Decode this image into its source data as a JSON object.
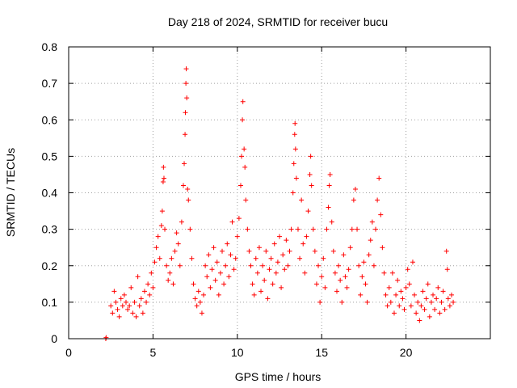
{
  "chart_data": {
    "type": "scatter",
    "title": "Day 218 of 2024, SRMTID for receiver bucu",
    "xlabel": "GPS time / hours",
    "ylabel": "SRMTID / TECUs",
    "xlim": [
      0,
      25
    ],
    "ylim": [
      0,
      0.8
    ],
    "xticks": [
      0,
      5,
      10,
      15,
      20
    ],
    "xtick_labels": [
      "0",
      "5",
      "10",
      "15",
      "20"
    ],
    "yticks": [
      0,
      0.1,
      0.2,
      0.3,
      0.4,
      0.5,
      0.6,
      0.7,
      0.8
    ],
    "ytick_labels": [
      "0",
      "0.1",
      "0.2",
      "0.3",
      "0.4",
      "0.5",
      "0.6",
      "0.7",
      "0.8"
    ],
    "grid": true,
    "marker": "plus",
    "color": "#ff0000",
    "series": [
      {
        "name": "SRMTID",
        "points": [
          [
            2.2,
            0.0
          ],
          [
            2.22,
            0.003
          ],
          [
            2.5,
            0.09
          ],
          [
            2.6,
            0.07
          ],
          [
            2.7,
            0.13
          ],
          [
            2.8,
            0.1
          ],
          [
            2.9,
            0.08
          ],
          [
            3.0,
            0.06
          ],
          [
            3.1,
            0.11
          ],
          [
            3.2,
            0.09
          ],
          [
            3.3,
            0.12
          ],
          [
            3.4,
            0.1
          ],
          [
            3.5,
            0.08
          ],
          [
            3.6,
            0.09
          ],
          [
            3.7,
            0.14
          ],
          [
            3.8,
            0.07
          ],
          [
            3.9,
            0.1
          ],
          [
            4.0,
            0.06
          ],
          [
            4.1,
            0.17
          ],
          [
            4.2,
            0.09
          ],
          [
            4.3,
            0.11
          ],
          [
            4.4,
            0.07
          ],
          [
            4.5,
            0.13
          ],
          [
            4.6,
            0.1
          ],
          [
            4.7,
            0.15
          ],
          [
            4.8,
            0.12
          ],
          [
            4.9,
            0.18
          ],
          [
            5.0,
            0.14
          ],
          [
            5.1,
            0.21
          ],
          [
            5.2,
            0.25
          ],
          [
            5.3,
            0.28
          ],
          [
            5.4,
            0.22
          ],
          [
            5.5,
            0.31
          ],
          [
            5.55,
            0.35
          ],
          [
            5.6,
            0.43
          ],
          [
            5.62,
            0.47
          ],
          [
            5.65,
            0.44
          ],
          [
            5.7,
            0.3
          ],
          [
            5.8,
            0.2
          ],
          [
            5.9,
            0.16
          ],
          [
            6.0,
            0.18
          ],
          [
            6.1,
            0.22
          ],
          [
            6.2,
            0.15
          ],
          [
            6.3,
            0.24
          ],
          [
            6.4,
            0.29
          ],
          [
            6.5,
            0.26
          ],
          [
            6.6,
            0.2
          ],
          [
            6.7,
            0.32
          ],
          [
            6.8,
            0.42
          ],
          [
            6.85,
            0.48
          ],
          [
            6.9,
            0.56
          ],
          [
            6.92,
            0.62
          ],
          [
            6.95,
            0.7
          ],
          [
            6.97,
            0.74
          ],
          [
            7.0,
            0.66
          ],
          [
            7.05,
            0.41
          ],
          [
            7.1,
            0.38
          ],
          [
            7.2,
            0.3
          ],
          [
            7.3,
            0.22
          ],
          [
            7.4,
            0.15
          ],
          [
            7.5,
            0.11
          ],
          [
            7.6,
            0.09
          ],
          [
            7.7,
            0.13
          ],
          [
            7.8,
            0.1
          ],
          [
            7.9,
            0.07
          ],
          [
            8.0,
            0.12
          ],
          [
            8.1,
            0.2
          ],
          [
            8.2,
            0.17
          ],
          [
            8.3,
            0.23
          ],
          [
            8.4,
            0.14
          ],
          [
            8.5,
            0.19
          ],
          [
            8.6,
            0.25
          ],
          [
            8.7,
            0.16
          ],
          [
            8.8,
            0.21
          ],
          [
            8.9,
            0.12
          ],
          [
            9.0,
            0.18
          ],
          [
            9.1,
            0.24
          ],
          [
            9.2,
            0.15
          ],
          [
            9.3,
            0.2
          ],
          [
            9.4,
            0.26
          ],
          [
            9.5,
            0.17
          ],
          [
            9.6,
            0.23
          ],
          [
            9.7,
            0.32
          ],
          [
            9.8,
            0.19
          ],
          [
            9.9,
            0.22
          ],
          [
            10.0,
            0.28
          ],
          [
            10.1,
            0.33
          ],
          [
            10.2,
            0.42
          ],
          [
            10.25,
            0.5
          ],
          [
            10.3,
            0.6
          ],
          [
            10.33,
            0.65
          ],
          [
            10.4,
            0.52
          ],
          [
            10.45,
            0.47
          ],
          [
            10.5,
            0.38
          ],
          [
            10.6,
            0.3
          ],
          [
            10.7,
            0.24
          ],
          [
            10.8,
            0.2
          ],
          [
            10.9,
            0.15
          ],
          [
            11.0,
            0.12
          ],
          [
            11.1,
            0.22
          ],
          [
            11.2,
            0.18
          ],
          [
            11.3,
            0.25
          ],
          [
            11.4,
            0.13
          ],
          [
            11.5,
            0.2
          ],
          [
            11.6,
            0.16
          ],
          [
            11.7,
            0.24
          ],
          [
            11.8,
            0.11
          ],
          [
            11.9,
            0.19
          ],
          [
            12.0,
            0.22
          ],
          [
            12.1,
            0.15
          ],
          [
            12.2,
            0.26
          ],
          [
            12.3,
            0.18
          ],
          [
            12.4,
            0.21
          ],
          [
            12.5,
            0.28
          ],
          [
            12.6,
            0.14
          ],
          [
            12.7,
            0.23
          ],
          [
            12.8,
            0.19
          ],
          [
            12.9,
            0.27
          ],
          [
            13.0,
            0.2
          ],
          [
            13.1,
            0.24
          ],
          [
            13.2,
            0.3
          ],
          [
            13.3,
            0.4
          ],
          [
            13.35,
            0.48
          ],
          [
            13.4,
            0.56
          ],
          [
            13.42,
            0.59
          ],
          [
            13.45,
            0.52
          ],
          [
            13.5,
            0.44
          ],
          [
            13.6,
            0.3
          ],
          [
            13.7,
            0.22
          ],
          [
            13.8,
            0.38
          ],
          [
            13.9,
            0.26
          ],
          [
            14.0,
            0.18
          ],
          [
            14.1,
            0.28
          ],
          [
            14.2,
            0.35
          ],
          [
            14.3,
            0.45
          ],
          [
            14.35,
            0.5
          ],
          [
            14.4,
            0.42
          ],
          [
            14.5,
            0.3
          ],
          [
            14.6,
            0.24
          ],
          [
            14.7,
            0.15
          ],
          [
            14.8,
            0.2
          ],
          [
            14.9,
            0.1
          ],
          [
            15.0,
            0.17
          ],
          [
            15.1,
            0.22
          ],
          [
            15.2,
            0.14
          ],
          [
            15.3,
            0.3
          ],
          [
            15.4,
            0.36
          ],
          [
            15.45,
            0.42
          ],
          [
            15.5,
            0.45
          ],
          [
            15.6,
            0.32
          ],
          [
            15.7,
            0.24
          ],
          [
            15.8,
            0.18
          ],
          [
            15.9,
            0.13
          ],
          [
            16.0,
            0.2
          ],
          [
            16.1,
            0.16
          ],
          [
            16.2,
            0.1
          ],
          [
            16.3,
            0.23
          ],
          [
            16.4,
            0.17
          ],
          [
            16.5,
            0.14
          ],
          [
            16.6,
            0.19
          ],
          [
            16.7,
            0.25
          ],
          [
            16.8,
            0.3
          ],
          [
            16.9,
            0.38
          ],
          [
            17.0,
            0.41
          ],
          [
            17.1,
            0.3
          ],
          [
            17.2,
            0.2
          ],
          [
            17.3,
            0.12
          ],
          [
            17.4,
            0.17
          ],
          [
            17.5,
            0.21
          ],
          [
            17.6,
            0.15
          ],
          [
            17.7,
            0.1
          ],
          [
            17.8,
            0.23
          ],
          [
            17.9,
            0.27
          ],
          [
            18.0,
            0.32
          ],
          [
            18.1,
            0.2
          ],
          [
            18.2,
            0.3
          ],
          [
            18.3,
            0.38
          ],
          [
            18.4,
            0.44
          ],
          [
            18.5,
            0.34
          ],
          [
            18.6,
            0.25
          ],
          [
            18.7,
            0.18
          ],
          [
            18.8,
            0.12
          ],
          [
            18.9,
            0.09
          ],
          [
            19.0,
            0.14
          ],
          [
            19.1,
            0.1
          ],
          [
            19.2,
            0.18
          ],
          [
            19.3,
            0.07
          ],
          [
            19.4,
            0.12
          ],
          [
            19.5,
            0.16
          ],
          [
            19.6,
            0.09
          ],
          [
            19.7,
            0.13
          ],
          [
            19.8,
            0.11
          ],
          [
            19.9,
            0.08
          ],
          [
            20.0,
            0.14
          ],
          [
            20.1,
            0.19
          ],
          [
            20.2,
            0.15
          ],
          [
            20.3,
            0.09
          ],
          [
            20.4,
            0.21
          ],
          [
            20.5,
            0.12
          ],
          [
            20.6,
            0.07
          ],
          [
            20.7,
            0.1
          ],
          [
            20.8,
            0.05
          ],
          [
            20.9,
            0.09
          ],
          [
            21.0,
            0.13
          ],
          [
            21.1,
            0.08
          ],
          [
            21.2,
            0.11
          ],
          [
            21.3,
            0.15
          ],
          [
            21.4,
            0.06
          ],
          [
            21.5,
            0.1
          ],
          [
            21.6,
            0.12
          ],
          [
            21.7,
            0.08
          ],
          [
            21.8,
            0.11
          ],
          [
            21.9,
            0.14
          ],
          [
            22.0,
            0.07
          ],
          [
            22.1,
            0.1
          ],
          [
            22.2,
            0.13
          ],
          [
            22.3,
            0.08
          ],
          [
            22.4,
            0.24
          ],
          [
            22.45,
            0.19
          ],
          [
            22.5,
            0.11
          ],
          [
            22.6,
            0.09
          ],
          [
            22.7,
            0.12
          ],
          [
            22.8,
            0.1
          ]
        ]
      }
    ]
  }
}
